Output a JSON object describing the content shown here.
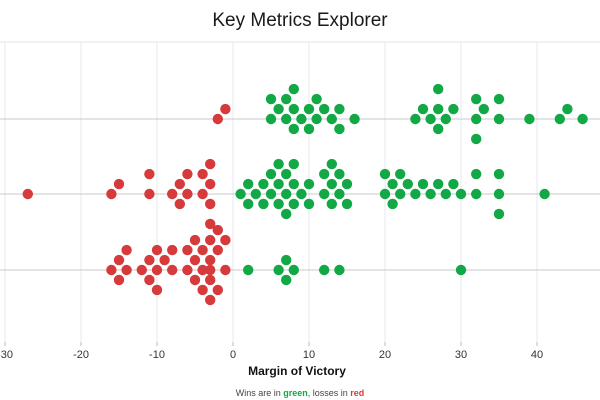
{
  "chart_data": {
    "type": "scatter",
    "title": "Key Metrics Explorer",
    "xlabel": "Margin of Victory",
    "ylabel": "",
    "xlim": [
      -30,
      48
    ],
    "x_ticks": [
      -30,
      -20,
      -10,
      0,
      10,
      20,
      30,
      40
    ],
    "rows": 3,
    "colors": {
      "win": "#11a845",
      "loss": "#d63a3a"
    },
    "grid": "vertical lines at ticks and horizontal line per row",
    "legend": "footnote",
    "series": [
      {
        "row": 0,
        "points": [
          -2,
          -1,
          5,
          5,
          6,
          7,
          7,
          8,
          8,
          8,
          9,
          10,
          10,
          11,
          11,
          12,
          13,
          14,
          14,
          16,
          24,
          25,
          26,
          27,
          27,
          27,
          28,
          29,
          32,
          32,
          32,
          33,
          35,
          35,
          39,
          43,
          44,
          46
        ]
      },
      {
        "row": 1,
        "points": [
          -27,
          -16,
          -15,
          -11,
          -11,
          -8,
          -7,
          -7,
          -6,
          -6,
          -4,
          -4,
          -3,
          -3,
          -3,
          -3,
          1,
          2,
          2,
          3,
          4,
          4,
          5,
          5,
          6,
          6,
          6,
          7,
          7,
          7,
          8,
          8,
          8,
          9,
          10,
          10,
          12,
          12,
          13,
          13,
          13,
          14,
          14,
          15,
          15,
          20,
          20,
          21,
          21,
          22,
          22,
          23,
          24,
          25,
          26,
          27,
          28,
          29,
          30,
          32,
          32,
          35,
          35,
          35,
          41
        ]
      },
      {
        "row": 2,
        "points": [
          -16,
          -15,
          -15,
          -14,
          -14,
          -12,
          -11,
          -11,
          -10,
          -10,
          -10,
          -9,
          -8,
          -8,
          -6,
          -6,
          -5,
          -5,
          -5,
          -4,
          -4,
          -4,
          -3,
          -3,
          -3,
          -3,
          -3,
          -2,
          -2,
          -2,
          -1,
          -1,
          2,
          6,
          7,
          7,
          8,
          12,
          14,
          30
        ]
      }
    ]
  },
  "footnote": {
    "prefix": "Wins are in ",
    "win_word": "green",
    "middle": ", losses in ",
    "loss_word": "red"
  }
}
